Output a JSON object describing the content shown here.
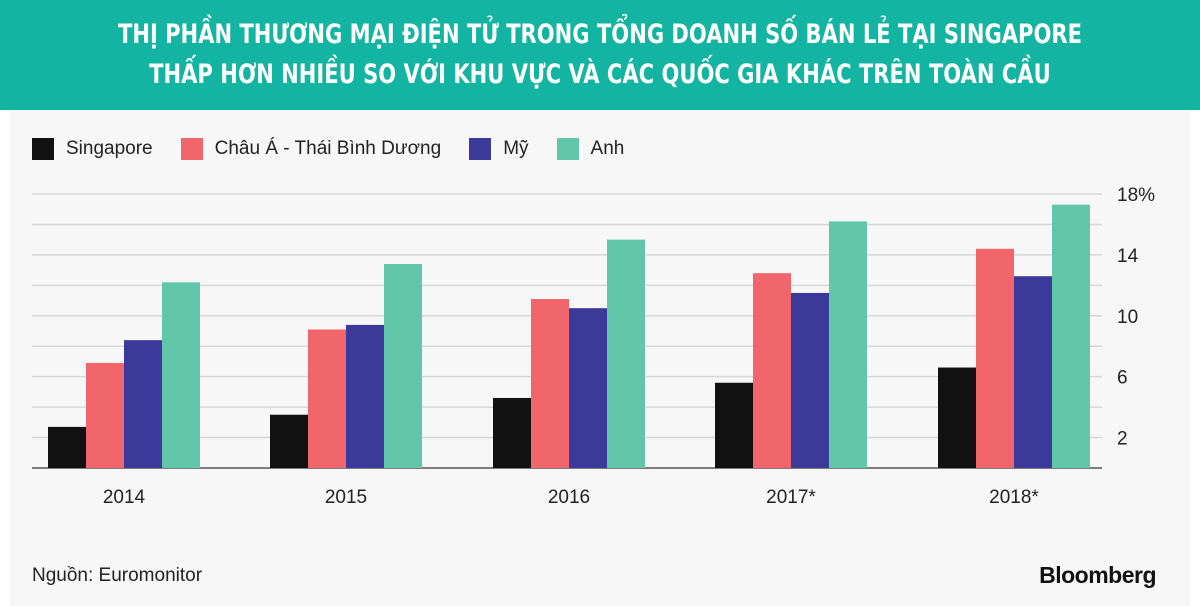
{
  "title_lines": [
    "THỊ PHẦN THƯƠNG MẠI ĐIỆN TỬ TRONG TỔNG DOANH SỐ BÁN LẺ TẠI SINGAPORE",
    "THẤP HƠN NHIỀU SO VỚI KHU VỰC VÀ CÁC QUỐC GIA KHÁC TRÊN TOÀN CẦU"
  ],
  "source": "Nguồn: Euromonitor",
  "brand": "Bloomberg",
  "colors": {
    "header": "#13b4a1",
    "singapore": "#111111",
    "apac": "#f0666a",
    "us": "#3b3a9a",
    "uk": "#62c6a8",
    "grid": "#d7d7d7"
  },
  "chart_data": {
    "type": "bar",
    "categories": [
      "2014",
      "2015",
      "2016",
      "2017*",
      "2018*"
    ],
    "series": [
      {
        "name": "Singapore",
        "color_key": "singapore",
        "values": [
          2.7,
          3.5,
          4.6,
          5.6,
          6.6
        ]
      },
      {
        "name": "Châu Á - Thái Bình Dương",
        "color_key": "apac",
        "values": [
          6.9,
          9.1,
          11.1,
          12.8,
          14.4
        ]
      },
      {
        "name": "Mỹ",
        "color_key": "us",
        "values": [
          8.4,
          9.4,
          10.5,
          11.5,
          12.6
        ]
      },
      {
        "name": "Anh",
        "color_key": "uk",
        "values": [
          12.2,
          13.4,
          15.0,
          16.2,
          17.3
        ]
      }
    ],
    "y_ticks": [
      {
        "value": 2,
        "label": "2"
      },
      {
        "value": 6,
        "label": "6"
      },
      {
        "value": 10,
        "label": "10"
      },
      {
        "value": 14,
        "label": "14"
      },
      {
        "value": 18,
        "label": "18%"
      }
    ],
    "gridlines": [
      2,
      4,
      6,
      8,
      10,
      12,
      14,
      16,
      18
    ],
    "ylim": [
      0,
      18
    ],
    "grid": true,
    "legend_position": "top-left",
    "y_axis_side": "right"
  }
}
